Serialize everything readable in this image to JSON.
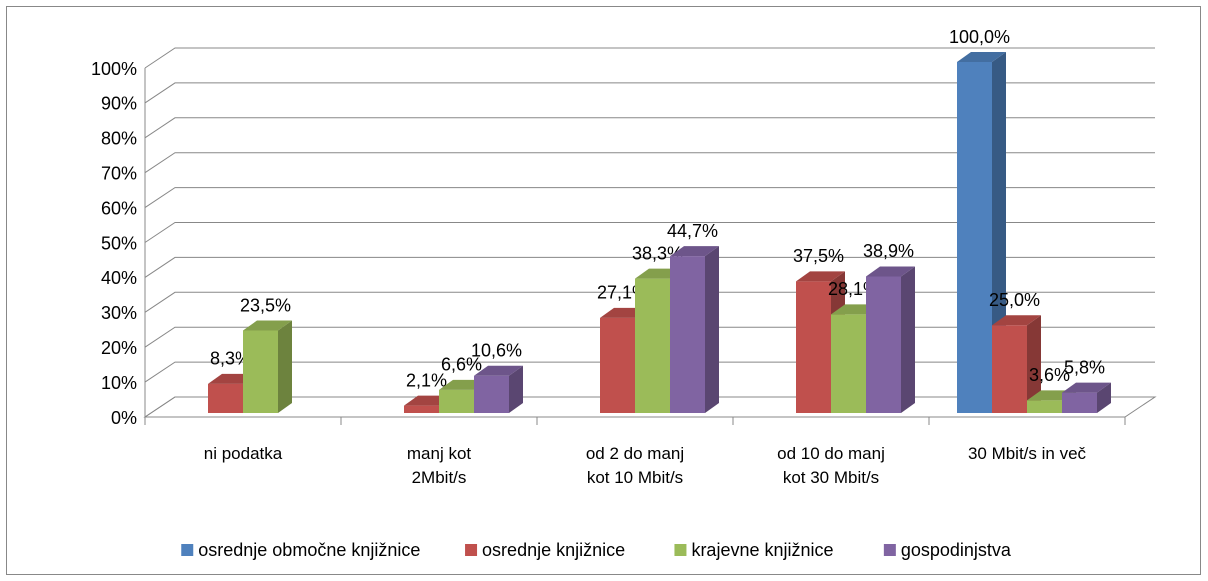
{
  "chart_data": {
    "type": "bar3d",
    "categories": [
      "ni podatka",
      "manj kot 2Mbit/s",
      "od 2 do manj kot 10 Mbit/s",
      "od 10 do manj kot 30 Mbit/s",
      "30 Mbit/s in več"
    ],
    "series": [
      {
        "name": "osrednje območne knjižnice",
        "color": "#4f81bd",
        "values": [
          null,
          null,
          null,
          null,
          100
        ],
        "value_labels": [
          null,
          null,
          null,
          null,
          "100,0%"
        ]
      },
      {
        "name": "osrednje knjižnice",
        "color": "#c0504d",
        "values": [
          8.3,
          2.1,
          27.1,
          37.5,
          25
        ],
        "value_labels": [
          "8,3%",
          "2,1%",
          "27,1%",
          "37,5%",
          "25,0%"
        ]
      },
      {
        "name": "krajevne knjižnice",
        "color": "#9bbb59",
        "values": [
          23.5,
          6.6,
          38.3,
          28.1,
          3.6
        ],
        "value_labels": [
          "23,5%",
          "6,6%",
          "38,3%",
          "28,1%",
          "3,6%"
        ]
      },
      {
        "name": "gospodinjstva",
        "color": "#8064a2",
        "values": [
          null,
          10.6,
          44.7,
          38.9,
          5.8
        ],
        "value_labels": [
          null,
          "10,6%",
          "44,7%",
          "38,9%",
          "5,8%"
        ]
      }
    ],
    "ylim": [
      0,
      100
    ],
    "yticks": [
      {
        "value": 0,
        "label": "0%"
      },
      {
        "value": 10,
        "label": "10%"
      },
      {
        "value": 20,
        "label": "20%"
      },
      {
        "value": 30,
        "label": "30%"
      },
      {
        "value": 40,
        "label": "40%"
      },
      {
        "value": 50,
        "label": "50%"
      },
      {
        "value": 60,
        "label": "60%"
      },
      {
        "value": 70,
        "label": "70%"
      },
      {
        "value": 80,
        "label": "80%"
      },
      {
        "value": 90,
        "label": "90%"
      },
      {
        "value": 100,
        "label": "100%"
      }
    ],
    "grid": true,
    "legend": "bottom"
  }
}
